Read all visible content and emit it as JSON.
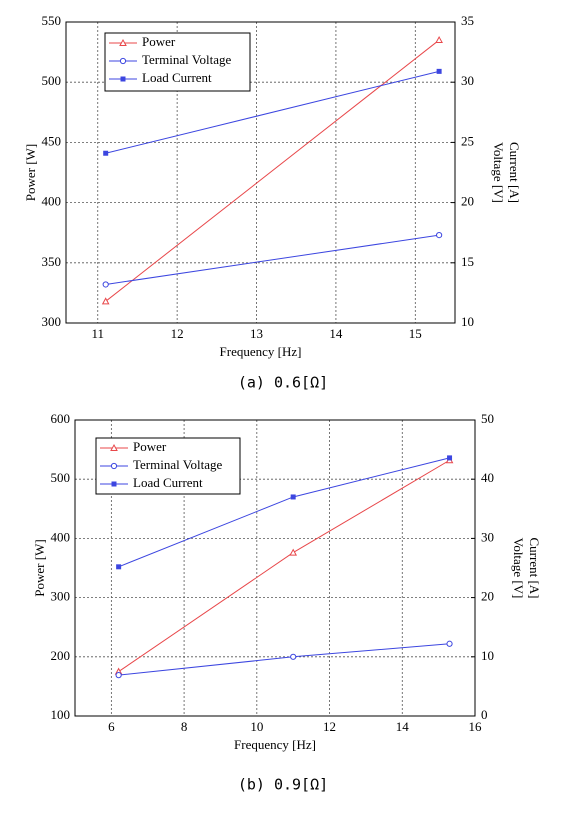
{
  "chart_data": [
    {
      "type": "line",
      "caption": "(a) 0.6[Ω]",
      "x_label": "Frequency [Hz]",
      "y_label": "Power [W]",
      "y2_label": [
        "Current [A]",
        "Voltage [V]"
      ],
      "x": [
        11.1,
        15.3
      ],
      "xlim": [
        10.6,
        15.5
      ],
      "xticks": [
        11,
        12,
        13,
        14,
        15
      ],
      "ylim": [
        300,
        550
      ],
      "yticks": [
        300,
        350,
        400,
        450,
        500,
        550
      ],
      "y2lim": [
        10,
        35
      ],
      "y2ticks": [
        10,
        15,
        20,
        25,
        30,
        35
      ],
      "grid": true,
      "legend": "upper left",
      "series": [
        {
          "name": "Power",
          "color": "#e8474a",
          "marker": "triangle-open",
          "values": [
            318,
            535
          ]
        },
        {
          "name": "Terminal Voltage",
          "color": "#3c46e0",
          "marker": "circle-open",
          "axis": "y2",
          "values": [
            13.2,
            17.3
          ]
        },
        {
          "name": "Load Current",
          "color": "#3c46e0",
          "marker": "square",
          "axis": "y2",
          "values": [
            24.1,
            30.9
          ]
        }
      ]
    },
    {
      "type": "line",
      "caption": "(b) 0.9[Ω]",
      "x_label": "Frequency [Hz]",
      "y_label": "Power [W]",
      "y2_label": [
        "Current [A]",
        "Voltage [V]"
      ],
      "x": [
        6.2,
        11,
        15.3
      ],
      "xlim": [
        5,
        16
      ],
      "xticks": [
        6,
        8,
        10,
        12,
        14,
        16
      ],
      "ylim": [
        100,
        600
      ],
      "yticks": [
        100,
        200,
        300,
        400,
        500,
        600
      ],
      "y2lim": [
        0,
        50
      ],
      "y2ticks": [
        0,
        10,
        20,
        30,
        40,
        50
      ],
      "grid": true,
      "legend": "upper left",
      "series": [
        {
          "name": "Power",
          "color": "#e8474a",
          "marker": "triangle-open",
          "values": [
            175,
            376,
            532
          ]
        },
        {
          "name": "Terminal Voltage",
          "color": "#3c46e0",
          "marker": "circle-open",
          "axis": "y2",
          "values": [
            6.9,
            10.0,
            12.2
          ]
        },
        {
          "name": "Load Current",
          "color": "#3c46e0",
          "marker": "square",
          "axis": "y2",
          "values": [
            25.2,
            37.0,
            43.6
          ]
        }
      ]
    }
  ]
}
